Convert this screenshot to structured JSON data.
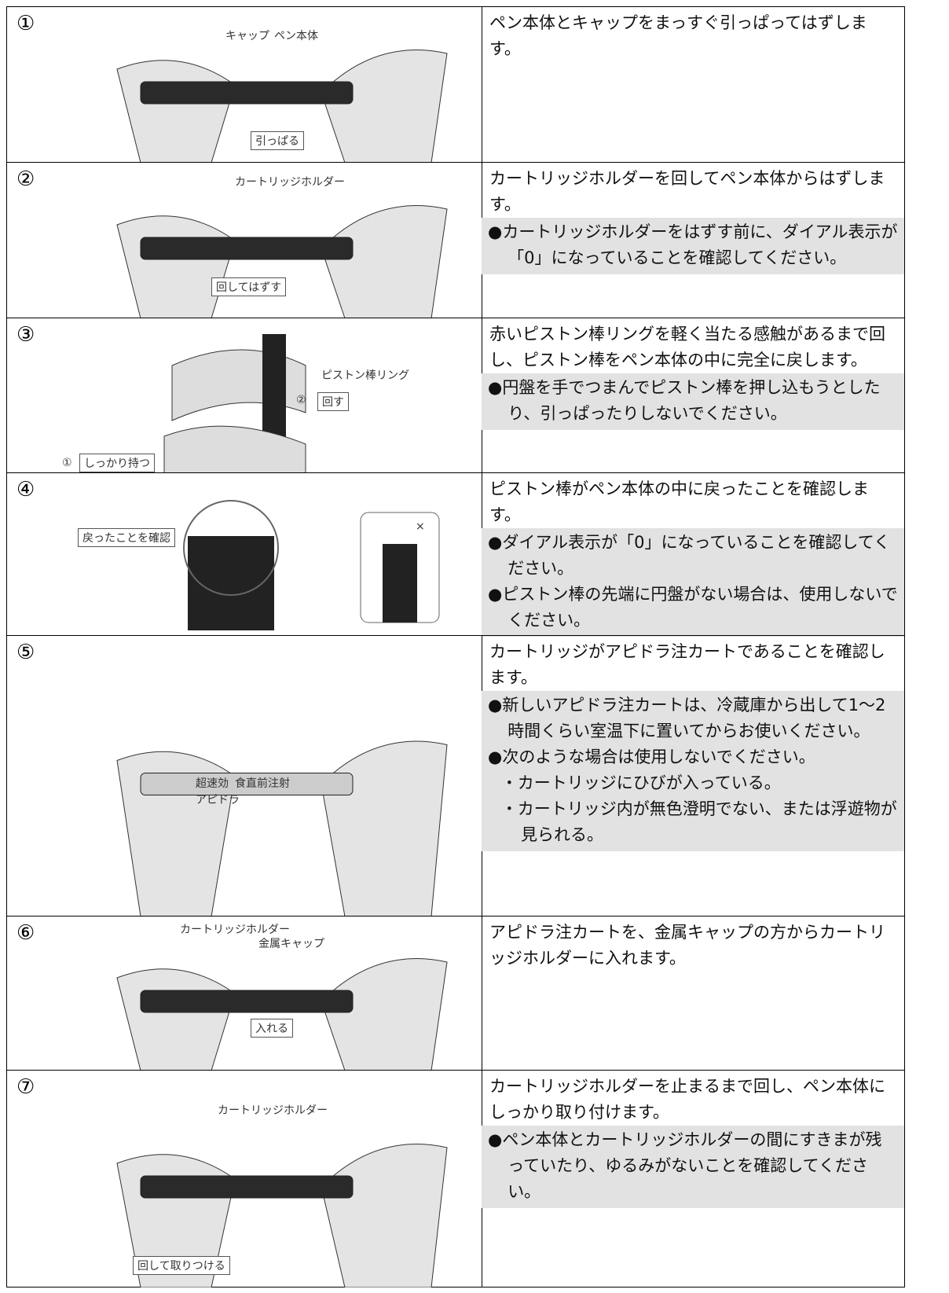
{
  "rows": [
    {
      "number": "①",
      "labels": [
        "キャップ",
        "ペン本体",
        "引っぱる"
      ],
      "text": "ペン本体とキャップをまっすぐ引っぱってはずします。",
      "notes": []
    },
    {
      "number": "②",
      "labels": [
        "カートリッジホルダー",
        "回してはずす"
      ],
      "text": "カートリッジホルダーを回してペン本体からはずします。",
      "notes": [
        "●カートリッジホルダーをはずす前に、ダイアル表示が「0」になっていることを確認してください。"
      ]
    },
    {
      "number": "③",
      "labels": [
        "ピストン棒リング",
        "②",
        "回す",
        "①",
        "しっかり持つ"
      ],
      "text": "赤いピストン棒リングを軽く当たる感触があるまで回し、ピストン棒をペン本体の中に完全に戻します。",
      "notes": [
        "●円盤を手でつまんでピストン棒を押し込もうとしたり、引っぱったりしないでください。"
      ]
    },
    {
      "number": "④",
      "labels": [
        "戻ったことを確認",
        "×"
      ],
      "text": "ピストン棒がペン本体の中に戻ったことを確認します。",
      "notes": [
        "●ダイアル表示が「0」になっていることを確認してください。",
        "●ピストン棒の先端に円盤がない場合は、使用しないでください。"
      ]
    },
    {
      "number": "⑤",
      "labels": [
        "超速効",
        "食直前注射",
        "アピドラ"
      ],
      "text": "カートリッジがアピドラ注カートであることを確認します。",
      "notes": [
        "●新しいアピドラ注カートは、冷蔵庫から出して1～2時間くらい室温下に置いてからお使いください。",
        "●次のような場合は使用しないでください。",
        "・カートリッジにひびが入っている。",
        "・カートリッジ内が無色澄明でない、または浮遊物が見られる。"
      ]
    },
    {
      "number": "⑥",
      "labels": [
        "カートリッジホルダー",
        "金属キャップ",
        "入れる"
      ],
      "text": "アピドラ注カートを、金属キャップの方からカートリッジホルダーに入れます。",
      "notes": []
    },
    {
      "number": "⑦",
      "labels": [
        "カートリッジホルダー",
        "回して取りつける"
      ],
      "text": "カートリッジホルダーを止まるまで回し、ペン本体にしっかり取り付けます。",
      "notes": [
        "●ペン本体とカートリッジホルダーの間にすきまが残っていたり、ゆるみがないことを確認してください。"
      ]
    }
  ]
}
